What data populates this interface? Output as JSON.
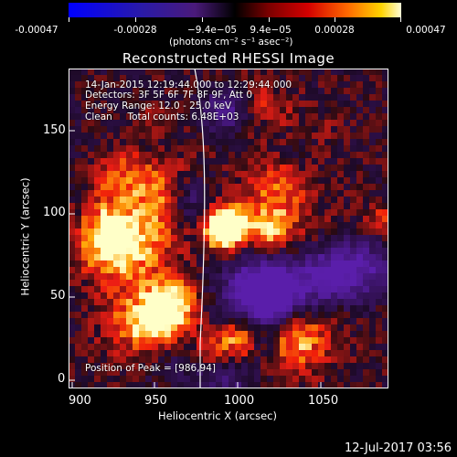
{
  "colorbar": {
    "tick_labels": [
      "-0.00047",
      "-0.00028",
      "−9.4e−05",
      "9.4e−05",
      "0.00028",
      "0.00047"
    ],
    "units": "(photons cm⁻² s⁻¹ asec⁻²)"
  },
  "title": "Reconstructed RHESSI Image",
  "info": {
    "time_range": "14-Jan-2015 12:19:44.000 to 12:29:44.000",
    "detectors": "Detectors: 3F 5F 6F 7F 8F 9F, Att 0",
    "energy": "Energy Range: 12.0 - 25.0 keV",
    "clean": "Clean     Total counts: 6.48E+03",
    "peak": "Position of Peak = [986,94]"
  },
  "axes": {
    "xlabel": "Heliocentric X (arcsec)",
    "ylabel": "Heliocentric Y (arcsec)",
    "xticks": [
      "900",
      "950",
      "1000",
      "1050"
    ],
    "yticks": [
      "0",
      "50",
      "100",
      "150"
    ]
  },
  "footer": "12-Jul-2017 03:56",
  "colors": {
    "limb": "#ffffff",
    "text": "#ffffff",
    "background": "#000000"
  }
}
